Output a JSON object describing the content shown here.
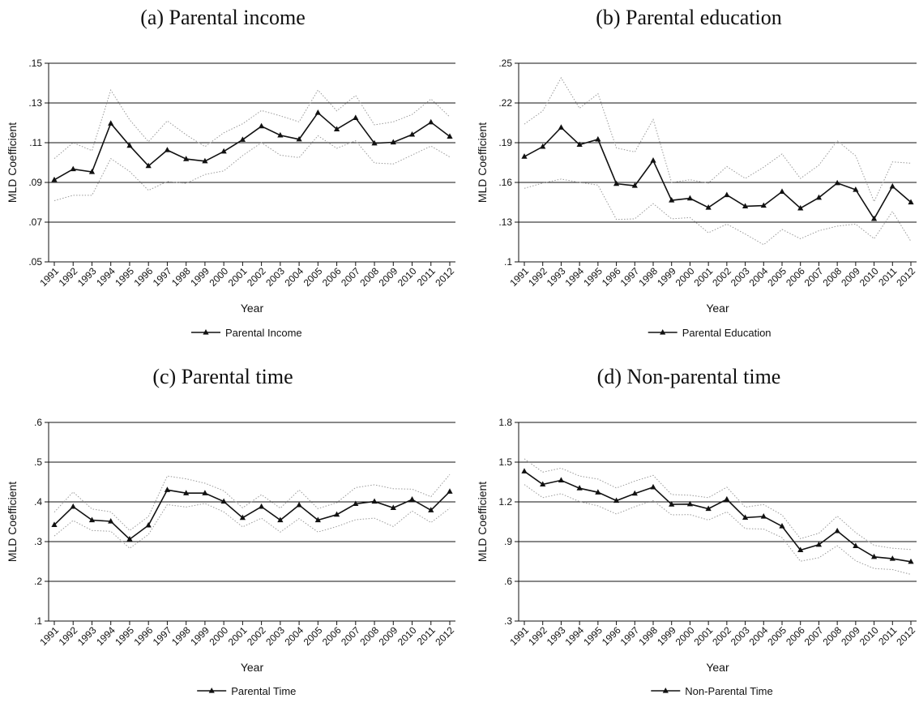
{
  "chart_data": [
    {
      "type": "line",
      "panel_title": "(a) Parental income",
      "xlabel": "Year",
      "ylabel": "MLD Coefficient",
      "x": [
        1991,
        1992,
        1993,
        1994,
        1995,
        1996,
        1997,
        1998,
        1999,
        2000,
        2001,
        2002,
        2003,
        2004,
        2005,
        2006,
        2007,
        2008,
        2009,
        2010,
        2011,
        2012
      ],
      "xtick_labels": [
        "1991",
        "1992",
        "1993",
        "1994",
        "1995",
        "1996",
        "1997",
        "1998",
        "1999",
        "2000",
        "2001",
        "2002",
        "2003",
        "2004",
        "2005",
        "2006",
        "2007",
        "2008",
        "2009",
        "2010",
        "2011",
        "2012"
      ],
      "ylim": [
        0.05,
        0.15
      ],
      "yticks": [
        0.05,
        0.07,
        0.09,
        0.11,
        0.13,
        0.15
      ],
      "ytick_labels": [
        ".05",
        ".07",
        ".09",
        ".11",
        ".13",
        ".15"
      ],
      "grid": true,
      "legend_position": "bottom",
      "series": [
        {
          "name": "Parental Income",
          "style": "solid-triangle",
          "values": [
            0.0913,
            0.0967,
            0.0953,
            0.1197,
            0.1085,
            0.0983,
            0.1063,
            0.1018,
            0.1007,
            0.1056,
            0.1115,
            0.1183,
            0.1137,
            0.1117,
            0.1251,
            0.1168,
            0.1225,
            0.1097,
            0.1102,
            0.1141,
            0.1203,
            0.1131
          ]
        },
        {
          "style": "dotted-upper",
          "values": [
            0.102,
            0.11,
            0.106,
            0.1365,
            0.1215,
            0.1105,
            0.121,
            0.114,
            0.108,
            0.115,
            0.1195,
            0.1262,
            0.1235,
            0.1205,
            0.1365,
            0.126,
            0.1338,
            0.119,
            0.1205,
            0.1242,
            0.132,
            0.123
          ]
        },
        {
          "style": "dotted-lower",
          "values": [
            0.0808,
            0.0835,
            0.0835,
            0.102,
            0.0955,
            0.086,
            0.0905,
            0.0895,
            0.094,
            0.0958,
            0.1035,
            0.11,
            0.1037,
            0.1025,
            0.1135,
            0.1072,
            0.111,
            0.0998,
            0.0993,
            0.1038,
            0.1083,
            0.1028
          ]
        }
      ]
    },
    {
      "type": "line",
      "panel_title": "(b) Parental education",
      "xlabel": "Year",
      "ylabel": "MLD Coefficient",
      "x": [
        1991,
        1992,
        1993,
        1994,
        1995,
        1996,
        1997,
        1998,
        1999,
        2000,
        2001,
        2002,
        2003,
        2004,
        2005,
        2006,
        2007,
        2008,
        2009,
        2010,
        2011,
        2012
      ],
      "xtick_labels": [
        "1991",
        "1992",
        "1993",
        "1994",
        "1995",
        "1996",
        "1997",
        "1998",
        "1999",
        "2000",
        "2001",
        "2002",
        "2003",
        "2004",
        "2005",
        "2006",
        "2007",
        "2008",
        "2009",
        "2010",
        "2011",
        "2012"
      ],
      "ylim": [
        0.1,
        0.25
      ],
      "yticks": [
        0.1,
        0.13,
        0.16,
        0.19,
        0.22,
        0.25
      ],
      "ytick_labels": [
        ".1",
        ".13",
        ".16",
        ".19",
        ".22",
        ".25"
      ],
      "grid": true,
      "legend_position": "bottom",
      "series": [
        {
          "name": "Parental Education",
          "style": "solid-triangle",
          "values": [
            0.1795,
            0.187,
            0.2015,
            0.1885,
            0.1925,
            0.159,
            0.1575,
            0.1765,
            0.1465,
            0.148,
            0.141,
            0.1505,
            0.142,
            0.1425,
            0.153,
            0.1405,
            0.1485,
            0.1595,
            0.1545,
            0.1325,
            0.157,
            0.145
          ]
        },
        {
          "style": "dotted-upper",
          "values": [
            0.204,
            0.214,
            0.239,
            0.216,
            0.227,
            0.186,
            0.183,
            0.2075,
            0.16,
            0.162,
            0.1595,
            0.172,
            0.163,
            0.1715,
            0.1815,
            0.163,
            0.173,
            0.1915,
            0.18,
            0.1455,
            0.1755,
            0.1745
          ]
        },
        {
          "style": "dotted-lower",
          "values": [
            0.1555,
            0.1595,
            0.1625,
            0.16,
            0.158,
            0.132,
            0.1325,
            0.144,
            0.1325,
            0.1335,
            0.122,
            0.1285,
            0.121,
            0.113,
            0.1245,
            0.1175,
            0.1235,
            0.127,
            0.1285,
            0.1175,
            0.138,
            0.1155
          ]
        }
      ]
    },
    {
      "type": "line",
      "panel_title": "(c) Parental time",
      "xlabel": "Year",
      "ylabel": "MLD Coefficient",
      "x": [
        1991,
        1992,
        1993,
        1994,
        1995,
        1996,
        1997,
        1998,
        1999,
        2000,
        2001,
        2002,
        2003,
        2004,
        2005,
        2006,
        2007,
        2008,
        2009,
        2010,
        2011,
        2012
      ],
      "xtick_labels": [
        "1991",
        "1992",
        "1993",
        "1994",
        "1995",
        "1996",
        "1997",
        "1998",
        "1999",
        "2000",
        "2001",
        "2002",
        "2003",
        "2004",
        "2005",
        "2006",
        "2007",
        "2008",
        "2009",
        "2010",
        "2011",
        "2012"
      ],
      "ylim": [
        0.1,
        0.6
      ],
      "yticks": [
        0.1,
        0.2,
        0.3,
        0.4,
        0.5,
        0.6
      ],
      "ytick_labels": [
        ".1",
        ".2",
        ".3",
        ".4",
        ".5",
        ".6"
      ],
      "grid": true,
      "legend_position": "bottom",
      "series": [
        {
          "name": "Parental Time",
          "style": "solid-triangle",
          "values": [
            0.342,
            0.388,
            0.354,
            0.351,
            0.306,
            0.341,
            0.43,
            0.422,
            0.422,
            0.401,
            0.36,
            0.388,
            0.354,
            0.392,
            0.354,
            0.368,
            0.395,
            0.401,
            0.385,
            0.406,
            0.379,
            0.426
          ]
        },
        {
          "style": "dotted-upper",
          "values": [
            0.374,
            0.425,
            0.382,
            0.375,
            0.328,
            0.363,
            0.465,
            0.458,
            0.447,
            0.428,
            0.385,
            0.418,
            0.384,
            0.43,
            0.383,
            0.398,
            0.436,
            0.443,
            0.433,
            0.432,
            0.413,
            0.469
          ]
        },
        {
          "style": "dotted-lower",
          "values": [
            0.314,
            0.353,
            0.328,
            0.326,
            0.283,
            0.318,
            0.393,
            0.387,
            0.396,
            0.375,
            0.337,
            0.359,
            0.324,
            0.358,
            0.324,
            0.338,
            0.355,
            0.359,
            0.338,
            0.377,
            0.348,
            0.384
          ]
        }
      ]
    },
    {
      "type": "line",
      "panel_title": "(d) Non-parental time",
      "xlabel": "Year",
      "ylabel": "MLD Coefficient",
      "x": [
        1991,
        1992,
        1993,
        1994,
        1995,
        1996,
        1997,
        1998,
        1999,
        2000,
        2001,
        2002,
        2003,
        2004,
        2005,
        2006,
        2007,
        2008,
        2009,
        2010,
        2011,
        2012
      ],
      "xtick_labels": [
        "1991",
        "1992",
        "1993",
        "1994",
        "1995",
        "1996",
        "1997",
        "1998",
        "1999",
        "2000",
        "2001",
        "2002",
        "2003",
        "2004",
        "2005",
        "2006",
        "2007",
        "2008",
        "2009",
        "2010",
        "2011",
        "2012"
      ],
      "ylim": [
        0.3,
        1.8
      ],
      "yticks": [
        0.3,
        0.6,
        0.9,
        1.2,
        1.5,
        1.8
      ],
      "ytick_labels": [
        ".3",
        ".6",
        ".9",
        "1.2",
        "1.5",
        "1.8"
      ],
      "grid": true,
      "legend_position": "bottom",
      "series": [
        {
          "name": "Non-Parental Time",
          "style": "solid-triangle",
          "values": [
            1.431,
            1.332,
            1.363,
            1.303,
            1.272,
            1.209,
            1.263,
            1.311,
            1.181,
            1.183,
            1.148,
            1.219,
            1.081,
            1.09,
            1.016,
            0.836,
            0.877,
            0.98,
            0.867,
            0.785,
            0.771,
            0.748
          ]
        },
        {
          "style": "dotted-upper",
          "values": [
            1.525,
            1.425,
            1.455,
            1.395,
            1.372,
            1.305,
            1.357,
            1.4,
            1.255,
            1.25,
            1.232,
            1.311,
            1.16,
            1.18,
            1.101,
            0.922,
            0.963,
            1.092,
            0.968,
            0.872,
            0.85,
            0.84
          ]
        },
        {
          "style": "dotted-lower",
          "values": [
            1.331,
            1.232,
            1.262,
            1.202,
            1.17,
            1.108,
            1.164,
            1.21,
            1.102,
            1.104,
            1.063,
            1.125,
            0.998,
            0.995,
            0.93,
            0.752,
            0.778,
            0.869,
            0.755,
            0.697,
            0.689,
            0.652
          ]
        }
      ]
    }
  ]
}
